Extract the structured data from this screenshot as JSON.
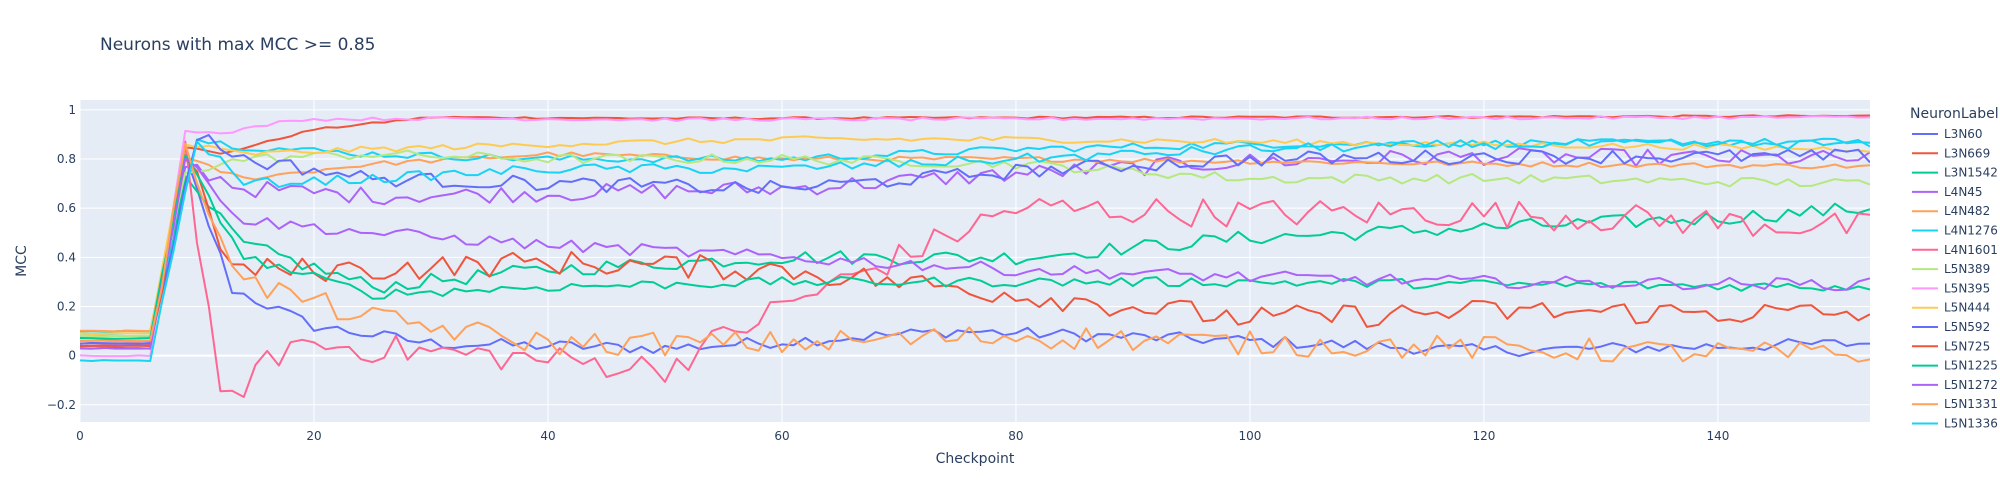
{
  "chart_data": {
    "type": "line",
    "title": "Neurons with max MCC >= 0.85",
    "xlabel": "Checkpoint",
    "ylabel": "MCC",
    "xlim": [
      0,
      153
    ],
    "ylim": [
      -0.27,
      1.04
    ],
    "x_ticks": [
      0,
      20,
      40,
      60,
      80,
      100,
      120,
      140
    ],
    "y_ticks": [
      -0.2,
      0,
      0.2,
      0.4,
      0.6,
      0.8,
      1
    ],
    "y_tick_labels": [
      "−0.2",
      "0",
      "0.2",
      "0.4",
      "0.6",
      "0.8",
      "1"
    ],
    "grid": true,
    "legend_title": "NeuronLabel",
    "legend_position": "right",
    "series": [
      {
        "name": "L3N60",
        "color": "#636efa",
        "start": 0.03,
        "peak": 0.8,
        "peak_x": 9,
        "end": 0.05,
        "noise": 0.025,
        "points": [
          [
            13,
            0.27
          ],
          [
            20,
            0.12
          ],
          [
            30,
            0.05
          ],
          [
            50,
            0.03
          ],
          [
            75,
            0.1
          ],
          [
            100,
            0.06
          ],
          [
            120,
            0.02
          ],
          [
            153,
            0.05
          ]
        ]
      },
      {
        "name": "L3N669",
        "color": "#ef553b",
        "start": 0.05,
        "peak": 0.85,
        "peak_x": 9,
        "end": 0.975,
        "noise": 0.004,
        "points": [
          [
            12,
            0.82
          ],
          [
            20,
            0.92
          ],
          [
            30,
            0.97
          ],
          [
            50,
            0.965
          ],
          [
            100,
            0.97
          ],
          [
            153,
            0.975
          ]
        ]
      },
      {
        "name": "L3N1542",
        "color": "#00cc96",
        "start": 0.1,
        "peak": 0.7,
        "peak_x": 9,
        "end": 0.6,
        "noise": 0.03,
        "points": [
          [
            14,
            0.45
          ],
          [
            25,
            0.28
          ],
          [
            40,
            0.35
          ],
          [
            60,
            0.4
          ],
          [
            80,
            0.4
          ],
          [
            100,
            0.48
          ],
          [
            120,
            0.52
          ],
          [
            140,
            0.56
          ],
          [
            153,
            0.6
          ]
        ]
      },
      {
        "name": "L4N45",
        "color": "#ab63fa",
        "start": 0.04,
        "peak": 0.78,
        "peak_x": 9,
        "end": 0.8,
        "noise": 0.035,
        "points": [
          [
            14,
            0.68
          ],
          [
            25,
            0.65
          ],
          [
            40,
            0.66
          ],
          [
            60,
            0.68
          ],
          [
            80,
            0.74
          ],
          [
            100,
            0.79
          ],
          [
            120,
            0.81
          ],
          [
            153,
            0.8
          ]
        ]
      },
      {
        "name": "L4N482",
        "color": "#ffa15a",
        "start": 0.1,
        "peak": 0.8,
        "peak_x": 9,
        "end": 0.77,
        "noise": 0.01,
        "points": [
          [
            14,
            0.72
          ],
          [
            25,
            0.78
          ],
          [
            40,
            0.82
          ],
          [
            60,
            0.8
          ],
          [
            80,
            0.8
          ],
          [
            100,
            0.79
          ],
          [
            120,
            0.78
          ],
          [
            153,
            0.77
          ]
        ]
      },
      {
        "name": "L4N1276",
        "color": "#19d3f3",
        "start": 0.08,
        "peak": 0.88,
        "peak_x": 10,
        "end": 0.87,
        "noise": 0.015,
        "points": [
          [
            14,
            0.85
          ],
          [
            25,
            0.82
          ],
          [
            40,
            0.8
          ],
          [
            60,
            0.8
          ],
          [
            80,
            0.84
          ],
          [
            100,
            0.86
          ],
          [
            153,
            0.87
          ]
        ]
      },
      {
        "name": "L4N1601",
        "color": "#ff6692",
        "start": 0.06,
        "peak": 0.84,
        "peak_x": 9,
        "end": 0.52,
        "noise": 0.06,
        "points": [
          [
            12,
            -0.2
          ],
          [
            18,
            0.05
          ],
          [
            35,
            0.0
          ],
          [
            50,
            -0.05
          ],
          [
            60,
            0.2
          ],
          [
            70,
            0.4
          ],
          [
            80,
            0.6
          ],
          [
            100,
            0.58
          ],
          [
            120,
            0.58
          ],
          [
            153,
            0.52
          ]
        ]
      },
      {
        "name": "L5N389",
        "color": "#b6e880",
        "start": 0.08,
        "peak": 0.75,
        "peak_x": 9,
        "end": 0.7,
        "noise": 0.02,
        "points": [
          [
            14,
            0.8
          ],
          [
            25,
            0.82
          ],
          [
            40,
            0.8
          ],
          [
            60,
            0.8
          ],
          [
            80,
            0.78
          ],
          [
            100,
            0.72
          ],
          [
            120,
            0.72
          ],
          [
            153,
            0.7
          ]
        ]
      },
      {
        "name": "L5N395",
        "color": "#ff97ff",
        "start": 0.0,
        "peak": 0.92,
        "peak_x": 9,
        "end": 0.97,
        "noise": 0.006,
        "points": [
          [
            12,
            0.9
          ],
          [
            18,
            0.96
          ],
          [
            30,
            0.965
          ],
          [
            50,
            0.96
          ],
          [
            100,
            0.965
          ],
          [
            153,
            0.97
          ]
        ]
      },
      {
        "name": "L5N444",
        "color": "#fecb52",
        "start": 0.09,
        "peak": 0.86,
        "peak_x": 9,
        "end": 0.84,
        "noise": 0.012,
        "points": [
          [
            14,
            0.82
          ],
          [
            25,
            0.84
          ],
          [
            40,
            0.86
          ],
          [
            60,
            0.88
          ],
          [
            80,
            0.88
          ],
          [
            100,
            0.87
          ],
          [
            120,
            0.86
          ],
          [
            153,
            0.84
          ]
        ]
      },
      {
        "name": "L5N592",
        "color": "#636efa",
        "start": 0.05,
        "peak": 0.9,
        "peak_x": 10,
        "end": 0.81,
        "noise": 0.03,
        "points": [
          [
            14,
            0.8
          ],
          [
            25,
            0.72
          ],
          [
            40,
            0.7
          ],
          [
            60,
            0.68
          ],
          [
            80,
            0.75
          ],
          [
            100,
            0.8
          ],
          [
            120,
            0.81
          ],
          [
            153,
            0.81
          ]
        ]
      },
      {
        "name": "L5N725",
        "color": "#ef553b",
        "start": 0.04,
        "peak": 0.82,
        "peak_x": 9,
        "end": 0.17,
        "noise": 0.05,
        "points": [
          [
            13,
            0.35
          ],
          [
            25,
            0.35
          ],
          [
            40,
            0.38
          ],
          [
            60,
            0.35
          ],
          [
            80,
            0.25
          ],
          [
            100,
            0.15
          ],
          [
            120,
            0.18
          ],
          [
            153,
            0.17
          ]
        ]
      },
      {
        "name": "L5N1225",
        "color": "#00cc96",
        "start": 0.07,
        "peak": 0.8,
        "peak_x": 9,
        "end": 0.28,
        "noise": 0.02,
        "points": [
          [
            14,
            0.4
          ],
          [
            25,
            0.25
          ],
          [
            40,
            0.28
          ],
          [
            60,
            0.3
          ],
          [
            80,
            0.3
          ],
          [
            100,
            0.3
          ],
          [
            120,
            0.29
          ],
          [
            153,
            0.28
          ]
        ]
      },
      {
        "name": "L5N1272",
        "color": "#ab63fa",
        "start": 0.03,
        "peak": 0.8,
        "peak_x": 9,
        "end": 0.29,
        "noise": 0.025,
        "points": [
          [
            14,
            0.55
          ],
          [
            25,
            0.5
          ],
          [
            40,
            0.45
          ],
          [
            60,
            0.4
          ],
          [
            80,
            0.35
          ],
          [
            100,
            0.32
          ],
          [
            120,
            0.3
          ],
          [
            153,
            0.29
          ]
        ]
      },
      {
        "name": "L5N1331",
        "color": "#ffa15a",
        "start": 0.06,
        "peak": 0.82,
        "peak_x": 9,
        "end": 0.0,
        "noise": 0.05,
        "points": [
          [
            14,
            0.3
          ],
          [
            25,
            0.15
          ],
          [
            40,
            0.05
          ],
          [
            60,
            0.05
          ],
          [
            80,
            0.08
          ],
          [
            100,
            0.05
          ],
          [
            120,
            0.03
          ],
          [
            153,
            0.0
          ]
        ]
      },
      {
        "name": "L5N1336",
        "color": "#19d3f3",
        "start": -0.02,
        "peak": 0.88,
        "peak_x": 10,
        "end": 0.86,
        "noise": 0.02,
        "points": [
          [
            14,
            0.7
          ],
          [
            25,
            0.72
          ],
          [
            40,
            0.76
          ],
          [
            60,
            0.76
          ],
          [
            80,
            0.8
          ],
          [
            100,
            0.84
          ],
          [
            120,
            0.86
          ],
          [
            153,
            0.86
          ]
        ]
      }
    ]
  }
}
